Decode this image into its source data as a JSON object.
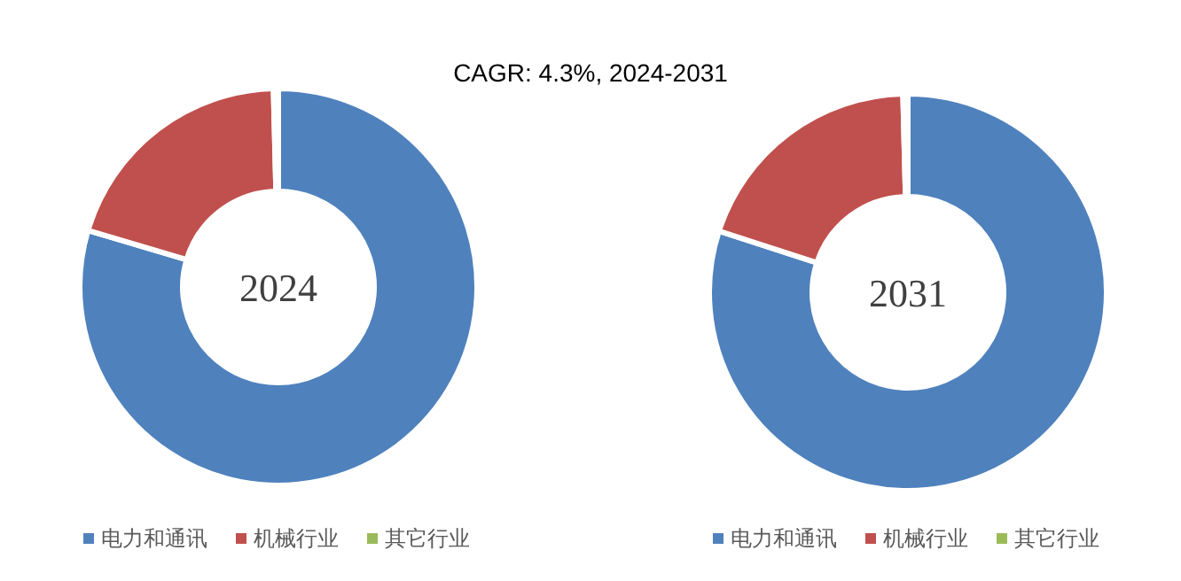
{
  "chart_data": [
    {
      "type": "donut",
      "title": "2024",
      "annotations": [
        "CAGR:   4.3%, 2024-2031"
      ],
      "categories": [
        "电力和通讯",
        "机械行业",
        "其它行业"
      ],
      "values": [
        79.6,
        20.0,
        0.4
      ],
      "colors": [
        "#4f81bd",
        "#c0504d",
        "#9bbb59"
      ],
      "legend": "bottom"
    },
    {
      "type": "donut",
      "title": "2031",
      "categories": [
        "电力和通讯",
        "机械行业",
        "其它行业"
      ],
      "values": [
        80.0,
        19.6,
        0.4
      ],
      "colors": [
        "#4f81bd",
        "#c0504d",
        "#9bbb59"
      ],
      "legend": "bottom"
    }
  ]
}
